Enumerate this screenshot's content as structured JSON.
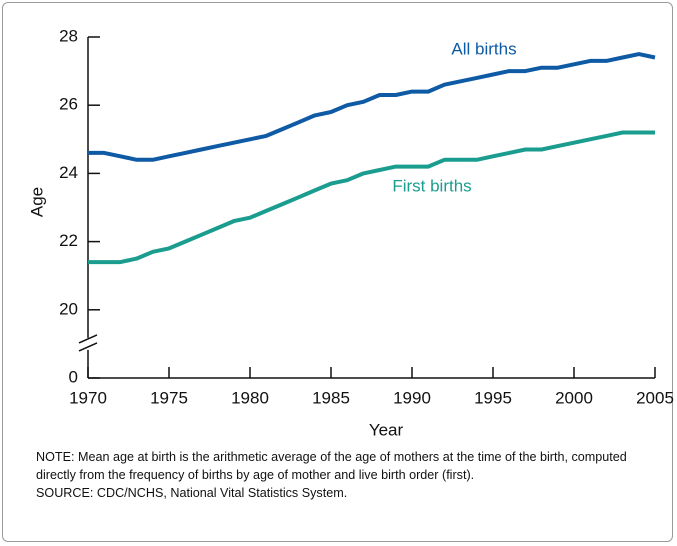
{
  "chart_data": {
    "type": "line",
    "x_label": "Year",
    "y_label": "Age",
    "x": [
      1970,
      1971,
      1972,
      1973,
      1974,
      1975,
      1976,
      1977,
      1978,
      1979,
      1980,
      1981,
      1982,
      1983,
      1984,
      1985,
      1986,
      1987,
      1988,
      1989,
      1990,
      1991,
      1992,
      1993,
      1994,
      1995,
      1996,
      1997,
      1998,
      1999,
      2000,
      2001,
      2002,
      2003,
      2004,
      2005
    ],
    "series": [
      {
        "name": "All births",
        "color": "#0f5aa5",
        "values": [
          24.6,
          24.6,
          24.5,
          24.4,
          24.4,
          24.5,
          24.6,
          24.7,
          24.8,
          24.9,
          25.0,
          25.1,
          25.3,
          25.5,
          25.7,
          25.8,
          26.0,
          26.1,
          26.3,
          26.3,
          26.4,
          26.4,
          26.6,
          26.7,
          26.8,
          26.9,
          27.0,
          27.0,
          27.1,
          27.1,
          27.2,
          27.3,
          27.3,
          27.4,
          27.5,
          27.4
        ]
      },
      {
        "name": "First births",
        "color": "#1a9d8e",
        "values": [
          21.4,
          21.4,
          21.4,
          21.5,
          21.7,
          21.8,
          22.0,
          22.2,
          22.4,
          22.6,
          22.7,
          22.9,
          23.1,
          23.3,
          23.5,
          23.7,
          23.8,
          24.0,
          24.1,
          24.2,
          24.2,
          24.2,
          24.4,
          24.4,
          24.4,
          24.5,
          24.6,
          24.7,
          24.7,
          24.8,
          24.9,
          25.0,
          25.1,
          25.2,
          25.2,
          25.2
        ]
      }
    ],
    "xlim": [
      1970,
      2005
    ],
    "xticks": [
      1970,
      1975,
      1980,
      1985,
      1990,
      1995,
      2000,
      2005
    ],
    "ylim": [
      0,
      28
    ],
    "axis_break": [
      0,
      18
    ],
    "yticks": [
      0,
      20,
      22,
      24,
      26,
      28
    ],
    "note": "NOTE: Mean age at birth is the arithmetic average of the age of mothers at the time of the birth, computed directly from the frequency of births by age of mother and live birth order (first).",
    "source": "SOURCE: CDC/NCHS, National Vital Statistics System."
  }
}
